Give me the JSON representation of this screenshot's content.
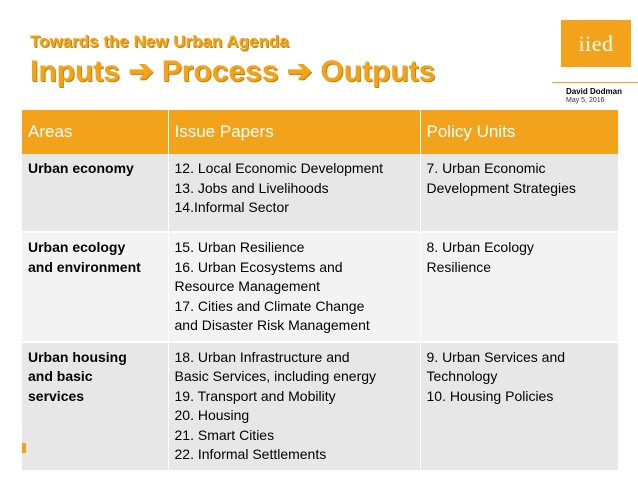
{
  "header": {
    "subtitle": "Towards the New Urban Agenda",
    "title": "Inputs ➔ Process ➔ Outputs"
  },
  "branding": {
    "logo_text": "iied",
    "author": "David Dodman",
    "date": "May 5, 2016"
  },
  "colors": {
    "accent": "#f3a31b",
    "row_dark": "#e7e7e7",
    "row_light": "#f3f3f3"
  },
  "table": {
    "headers": [
      "Areas",
      "Issue Papers",
      "Policy Units"
    ],
    "rows": [
      {
        "area": "Urban economy",
        "issue_papers": [
          "12. Local Economic Development",
          "13. Jobs and Livelihoods",
          "14.Informal Sector"
        ],
        "policy_units": [
          "7. Urban Economic",
          "Development Strategies"
        ]
      },
      {
        "area_lines": [
          "Urban ecology",
          "and environment"
        ],
        "issue_papers": [
          "15. Urban Resilience",
          "16. Urban Ecosystems and",
          "Resource Management",
          "17. Cities and Climate Change",
          "and Disaster Risk Management"
        ],
        "policy_units": [
          "8. Urban Ecology",
          "Resilience"
        ]
      },
      {
        "area_lines": [
          "Urban housing",
          "and basic",
          "services"
        ],
        "issue_papers": [
          "18. Urban Infrastructure and",
          "Basic Services, including energy",
          "19. Transport and Mobility",
          "20. Housing",
          "21. Smart Cities",
          "22. Informal Settlements"
        ],
        "policy_units": [
          "9. Urban Services and",
          "Technology",
          "10. Housing Policies"
        ]
      }
    ]
  }
}
